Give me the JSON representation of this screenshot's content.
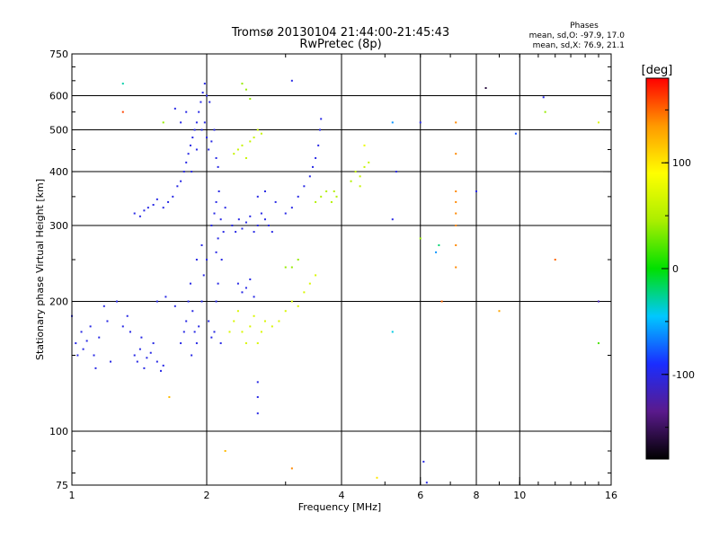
{
  "chart_data": {
    "type": "scatter",
    "title": "Tromsø 20130104 21:44:00-21:45:43",
    "subtitle": "RwPretec (8p)",
    "xlabel": "Frequency [MHz]",
    "ylabel": "Stationary phase Virtual Height [km]",
    "x_scale": "log",
    "y_scale": "log",
    "xlim": [
      1,
      16
    ],
    "ylim": [
      75,
      750
    ],
    "x_ticks": [
      {
        "value": 1,
        "label": "1"
      },
      {
        "value": 2,
        "label": "2"
      },
      {
        "value": 4,
        "label": "4"
      },
      {
        "value": 6,
        "label": "6"
      },
      {
        "value": 8,
        "label": "8"
      },
      {
        "value": 10,
        "label": "10"
      },
      {
        "value": 16,
        "label": "16"
      }
    ],
    "y_ticks": [
      {
        "value": 75,
        "label": "75"
      },
      {
        "value": 100,
        "label": "100"
      },
      {
        "value": 200,
        "label": "200"
      },
      {
        "value": 300,
        "label": "300"
      },
      {
        "value": 400,
        "label": "400"
      },
      {
        "value": 500,
        "label": "500"
      },
      {
        "value": 600,
        "label": "600"
      },
      {
        "value": 750,
        "label": "750"
      }
    ],
    "grid": true,
    "stats": {
      "heading": "Phases",
      "line1": "mean, sd,O:  -97.9, 17.0",
      "line2": "mean, sd,X:  76.9, 21.1"
    },
    "colorbar": {
      "label": "[deg]",
      "range": [
        -180,
        180
      ],
      "ticks": [
        {
          "value": 100,
          "label": "100"
        },
        {
          "value": 0,
          "label": "0"
        },
        {
          "value": -100,
          "label": "-100"
        }
      ],
      "colors": [
        "#000000",
        "#5a1a8c",
        "#1a2dff",
        "#00c8ff",
        "#00e000",
        "#aaee00",
        "#ffff00",
        "#ff9900",
        "#ff0000"
      ]
    },
    "points": [
      [
        1.0,
        185,
        -100
      ],
      [
        1.02,
        160,
        -100
      ],
      [
        1.03,
        150,
        -100
      ],
      [
        1.05,
        170,
        -100
      ],
      [
        1.06,
        155,
        -100
      ],
      [
        1.08,
        162,
        -100
      ],
      [
        1.1,
        175,
        -100
      ],
      [
        1.12,
        150,
        -100
      ],
      [
        1.13,
        140,
        -100
      ],
      [
        1.15,
        165,
        -100
      ],
      [
        1.18,
        195,
        -100
      ],
      [
        1.2,
        180,
        -100
      ],
      [
        1.22,
        145,
        -100
      ],
      [
        1.26,
        200,
        -100
      ],
      [
        1.3,
        175,
        -100
      ],
      [
        1.33,
        185,
        -100
      ],
      [
        1.35,
        170,
        -100
      ],
      [
        1.38,
        150,
        -100
      ],
      [
        1.4,
        145,
        -100
      ],
      [
        1.42,
        155,
        -100
      ],
      [
        1.45,
        140,
        -100
      ],
      [
        1.47,
        148,
        -100
      ],
      [
        1.5,
        152,
        -100
      ],
      [
        1.52,
        160,
        -100
      ],
      [
        1.55,
        145,
        -100
      ],
      [
        1.58,
        138,
        -100
      ],
      [
        1.6,
        142,
        -100
      ],
      [
        1.43,
        165,
        -100
      ],
      [
        1.38,
        320,
        -100
      ],
      [
        1.42,
        315,
        -100
      ],
      [
        1.45,
        325,
        -100
      ],
      [
        1.48,
        330,
        -100
      ],
      [
        1.52,
        335,
        -100
      ],
      [
        1.55,
        345,
        -100
      ],
      [
        1.6,
        330,
        -100
      ],
      [
        1.64,
        340,
        -100
      ],
      [
        1.68,
        350,
        -100
      ],
      [
        1.55,
        200,
        -100
      ],
      [
        1.62,
        205,
        -100
      ],
      [
        1.7,
        195,
        -100
      ],
      [
        1.72,
        370,
        -100
      ],
      [
        1.75,
        380,
        -100
      ],
      [
        1.78,
        400,
        -100
      ],
      [
        1.8,
        420,
        -100
      ],
      [
        1.82,
        440,
        -100
      ],
      [
        1.84,
        460,
        -100
      ],
      [
        1.86,
        480,
        -100
      ],
      [
        1.88,
        500,
        -100
      ],
      [
        1.9,
        520,
        -100
      ],
      [
        1.92,
        550,
        -100
      ],
      [
        1.94,
        580,
        -100
      ],
      [
        1.96,
        610,
        -100
      ],
      [
        1.98,
        640,
        -100
      ],
      [
        2.0,
        600,
        -100
      ],
      [
        1.95,
        500,
        -100
      ],
      [
        1.9,
        450,
        -100
      ],
      [
        1.85,
        400,
        -100
      ],
      [
        1.8,
        550,
        -100
      ],
      [
        1.75,
        520,
        -100
      ],
      [
        1.7,
        560,
        -100
      ],
      [
        2.02,
        450,
        -100
      ],
      [
        2.05,
        470,
        -100
      ],
      [
        2.08,
        500,
        -100
      ],
      [
        2.1,
        430,
        -100
      ],
      [
        2.12,
        410,
        -100
      ],
      [
        2.03,
        580,
        -100
      ],
      [
        1.98,
        520,
        -100
      ],
      [
        2.0,
        480,
        -100
      ],
      [
        1.75,
        160,
        -100
      ],
      [
        1.78,
        170,
        -100
      ],
      [
        1.8,
        180,
        -100
      ],
      [
        1.82,
        200,
        -100
      ],
      [
        1.84,
        220,
        -100
      ],
      [
        1.86,
        190,
        -100
      ],
      [
        1.88,
        170,
        -100
      ],
      [
        1.9,
        160,
        -100
      ],
      [
        1.92,
        175,
        -100
      ],
      [
        1.95,
        200,
        -100
      ],
      [
        1.97,
        230,
        -100
      ],
      [
        2.0,
        250,
        -100
      ],
      [
        2.02,
        180,
        -100
      ],
      [
        2.05,
        165,
        -100
      ],
      [
        2.08,
        170,
        -100
      ],
      [
        2.1,
        200,
        -100
      ],
      [
        2.12,
        220,
        -100
      ],
      [
        2.15,
        160,
        -100
      ],
      [
        1.85,
        150,
        -100
      ],
      [
        1.9,
        250,
        -100
      ],
      [
        1.95,
        270,
        -100
      ],
      [
        2.05,
        300,
        -100
      ],
      [
        2.08,
        320,
        -100
      ],
      [
        2.1,
        340,
        -100
      ],
      [
        2.12,
        280,
        -100
      ],
      [
        2.15,
        310,
        -100
      ],
      [
        2.18,
        290,
        -100
      ],
      [
        2.2,
        330,
        -100
      ],
      [
        2.13,
        360,
        -100
      ],
      [
        2.1,
        260,
        -100
      ],
      [
        2.16,
        250,
        -100
      ],
      [
        2.28,
        300,
        -100
      ],
      [
        2.32,
        290,
        -100
      ],
      [
        2.36,
        310,
        -100
      ],
      [
        2.4,
        295,
        -100
      ],
      [
        2.45,
        305,
        -100
      ],
      [
        2.5,
        315,
        -100
      ],
      [
        2.55,
        290,
        -100
      ],
      [
        2.6,
        300,
        -100
      ],
      [
        2.65,
        320,
        -100
      ],
      [
        2.7,
        310,
        -100
      ],
      [
        2.75,
        300,
        -100
      ],
      [
        2.8,
        290,
        -100
      ],
      [
        2.35,
        220,
        -100
      ],
      [
        2.4,
        210,
        -100
      ],
      [
        2.45,
        215,
        -100
      ],
      [
        2.5,
        225,
        -100
      ],
      [
        2.55,
        205,
        -100
      ],
      [
        2.6,
        350,
        -100
      ],
      [
        2.7,
        360,
        -100
      ],
      [
        2.85,
        340,
        -100
      ],
      [
        3.0,
        320,
        -100
      ],
      [
        3.1,
        330,
        -100
      ],
      [
        3.2,
        350,
        -100
      ],
      [
        3.3,
        370,
        -100
      ],
      [
        3.4,
        390,
        -100
      ],
      [
        3.45,
        410,
        -100
      ],
      [
        3.5,
        430,
        -100
      ],
      [
        3.55,
        460,
        -100
      ],
      [
        3.58,
        500,
        -100
      ],
      [
        3.6,
        530,
        -100
      ],
      [
        2.3,
        440,
        60
      ],
      [
        2.35,
        450,
        60
      ],
      [
        2.4,
        460,
        60
      ],
      [
        2.45,
        430,
        60
      ],
      [
        2.5,
        470,
        60
      ],
      [
        2.55,
        480,
        60
      ],
      [
        2.6,
        500,
        60
      ],
      [
        2.65,
        490,
        60
      ],
      [
        2.4,
        640,
        40
      ],
      [
        2.45,
        620,
        40
      ],
      [
        2.5,
        590,
        40
      ],
      [
        2.25,
        170,
        70
      ],
      [
        2.3,
        180,
        70
      ],
      [
        2.35,
        190,
        70
      ],
      [
        2.4,
        170,
        70
      ],
      [
        2.45,
        160,
        70
      ],
      [
        2.5,
        175,
        70
      ],
      [
        2.55,
        185,
        70
      ],
      [
        2.6,
        160,
        70
      ],
      [
        2.65,
        170,
        70
      ],
      [
        2.7,
        180,
        70
      ],
      [
        2.8,
        175,
        70
      ],
      [
        2.9,
        180,
        70
      ],
      [
        3.0,
        190,
        70
      ],
      [
        3.1,
        200,
        70
      ],
      [
        3.2,
        195,
        70
      ],
      [
        3.3,
        210,
        70
      ],
      [
        3.4,
        220,
        70
      ],
      [
        3.5,
        230,
        70
      ],
      [
        3.0,
        240,
        40
      ],
      [
        3.2,
        250,
        40
      ],
      [
        3.5,
        340,
        50
      ],
      [
        3.6,
        350,
        50
      ],
      [
        3.7,
        360,
        50
      ],
      [
        3.8,
        340,
        50
      ],
      [
        3.9,
        350,
        50
      ],
      [
        3.85,
        360,
        50
      ],
      [
        4.2,
        380,
        50
      ],
      [
        4.3,
        400,
        60
      ],
      [
        4.4,
        390,
        60
      ],
      [
        4.5,
        410,
        60
      ],
      [
        4.6,
        420,
        60
      ],
      [
        4.4,
        370,
        60
      ],
      [
        4.5,
        460,
        80
      ],
      [
        5.2,
        520,
        -60
      ],
      [
        5.2,
        310,
        -100
      ],
      [
        5.2,
        170,
        -40
      ],
      [
        5.3,
        400,
        -100
      ],
      [
        6.0,
        520,
        -100
      ],
      [
        6.0,
        280,
        40
      ],
      [
        6.1,
        85,
        -100
      ],
      [
        6.2,
        76,
        -100
      ],
      [
        6.5,
        260,
        -60
      ],
      [
        6.6,
        270,
        -20
      ],
      [
        6.7,
        200,
        150
      ],
      [
        7.2,
        520,
        140
      ],
      [
        7.2,
        440,
        140
      ],
      [
        7.2,
        360,
        140
      ],
      [
        7.2,
        340,
        140
      ],
      [
        7.2,
        320,
        140
      ],
      [
        7.2,
        300,
        140
      ],
      [
        7.2,
        270,
        140
      ],
      [
        7.2,
        240,
        140
      ],
      [
        8.0,
        360,
        -100
      ],
      [
        8.4,
        625,
        -160
      ],
      [
        9.0,
        190,
        130
      ],
      [
        9.8,
        490,
        -80
      ],
      [
        11.3,
        595,
        -100
      ],
      [
        11.4,
        550,
        40
      ],
      [
        12.0,
        250,
        150
      ],
      [
        15.0,
        520,
        70
      ],
      [
        15.0,
        160,
        20
      ],
      [
        15.0,
        200,
        -120
      ],
      [
        1.3,
        550,
        160
      ],
      [
        1.3,
        640,
        -30
      ],
      [
        2.2,
        90,
        120
      ],
      [
        3.1,
        650,
        -100
      ],
      [
        3.1,
        82,
        140
      ],
      [
        3.1,
        240,
        40
      ],
      [
        4.8,
        78,
        100
      ],
      [
        2.6,
        110,
        -100
      ],
      [
        2.6,
        120,
        -100
      ],
      [
        2.6,
        130,
        -100
      ],
      [
        1.65,
        120,
        120
      ],
      [
        1.6,
        520,
        40
      ]
    ]
  }
}
